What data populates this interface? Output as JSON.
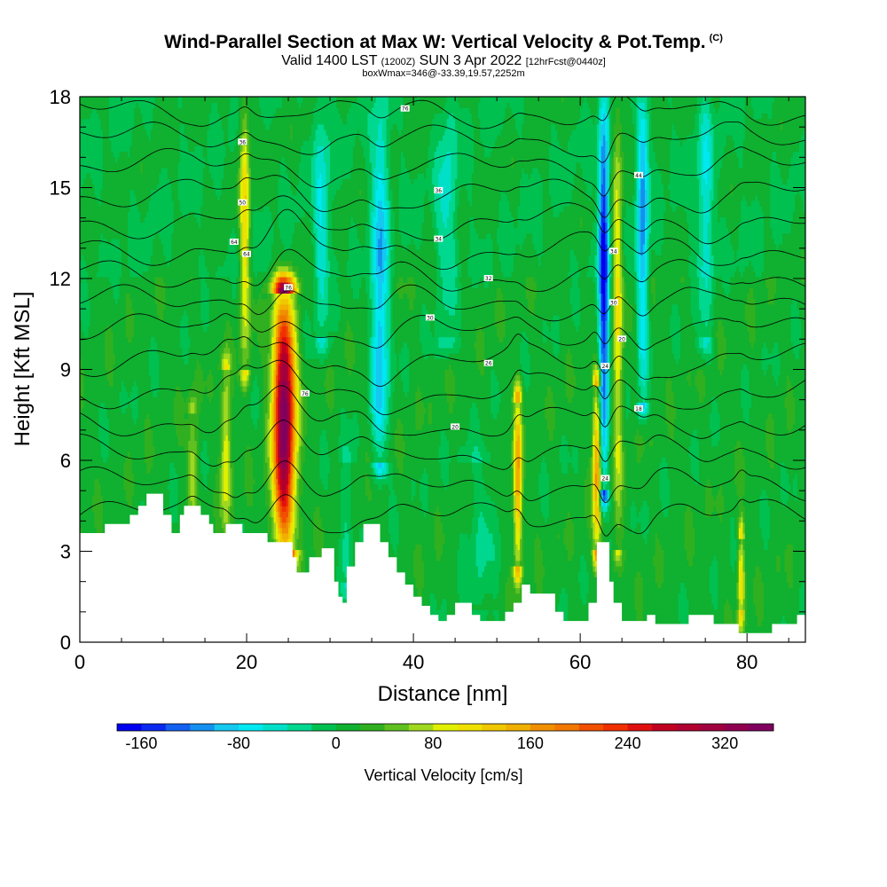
{
  "header": {
    "title": "Wind-Parallel Section at Max W: Vertical Velocity & Pot.Temp.",
    "title_mark": "(C)",
    "valid_prefix": "Valid 1400 LST",
    "valid_utc": "(1200Z)",
    "valid_date": "SUN 3 Apr 2022",
    "forecast": "[12hrFcst@0440z]",
    "box_info": "boxWmax=346@-33.39,19.57,2252m"
  },
  "colorbar": {
    "title": "Vertical Velocity [cm/s]",
    "tick_labels": [
      "-160",
      "-80",
      "0",
      "80",
      "160",
      "240",
      "320"
    ],
    "tick_values": [
      -160,
      -80,
      0,
      80,
      160,
      240,
      320
    ],
    "min": -180,
    "max": 360,
    "step": 20,
    "colors": [
      "#0000f0",
      "#0a2af0",
      "#1460f0",
      "#1490f0",
      "#14c8f0",
      "#00e8f0",
      "#00e0c8",
      "#00d890",
      "#00c050",
      "#10b030",
      "#30b020",
      "#60c020",
      "#a0d820",
      "#e0f000",
      "#f0e000",
      "#f0c800",
      "#f0b000",
      "#f09000",
      "#f07800",
      "#f05000",
      "#f03000",
      "#e01010",
      "#c00020",
      "#b00030",
      "#a00040",
      "#900050",
      "#800060"
    ]
  },
  "chart_data": {
    "type": "heatmap",
    "title": "Wind-Parallel Section at Max W: Vertical Velocity & Pot.Temp.",
    "xlabel": "Distance [nm]",
    "ylabel": "Height [Kft MSL]",
    "xlim": [
      0,
      87
    ],
    "ylim": [
      0,
      18
    ],
    "x_ticks": [
      0,
      20,
      40,
      60,
      80
    ],
    "x_tick_labels": [
      "0",
      "20",
      "40",
      "60",
      "80"
    ],
    "y_ticks": [
      0,
      3,
      6,
      9,
      12,
      15,
      18
    ],
    "y_tick_labels": [
      "0",
      "3",
      "6",
      "9",
      "12",
      "15",
      "18"
    ],
    "background_value": 10,
    "updrafts": [
      {
        "x": 24.5,
        "width": 1.3,
        "zmin": 3.0,
        "zmax": 11.5,
        "zpeak": 7.5,
        "peak": 346
      },
      {
        "x": 17.5,
        "width": 0.6,
        "zmin": 3.5,
        "zmax": 9.0,
        "zpeak": 6.5,
        "peak": 90
      },
      {
        "x": 13.5,
        "width": 0.6,
        "zmin": 4.0,
        "zmax": 7.5,
        "zpeak": 5.5,
        "peak": 70
      },
      {
        "x": 19.8,
        "width": 0.6,
        "zmin": 9.0,
        "zmax": 18.0,
        "zpeak": 14.5,
        "peak": 110
      },
      {
        "x": 52.5,
        "width": 0.5,
        "zmin": 2.5,
        "zmax": 8.0,
        "zpeak": 5.5,
        "peak": 150
      },
      {
        "x": 62.0,
        "width": 0.5,
        "zmin": 3.0,
        "zmax": 8.5,
        "zpeak": 6.0,
        "peak": 170
      },
      {
        "x": 64.5,
        "width": 0.6,
        "zmin": 3.0,
        "zmax": 18.0,
        "zpeak": 12.0,
        "peak": 90
      },
      {
        "x": 79.3,
        "width": 0.4,
        "zmin": 1.0,
        "zmax": 3.5,
        "zpeak": 2.0,
        "peak": 110
      }
    ],
    "downdrafts": [
      {
        "x": 36.0,
        "width": 1.0,
        "zmin": 6.0,
        "zmax": 18.0,
        "zpeak": 10.0,
        "peak": -110
      },
      {
        "x": 62.8,
        "width": 0.6,
        "zmin": 5.0,
        "zmax": 18.0,
        "zpeak": 12.0,
        "peak": -180
      },
      {
        "x": 67.5,
        "width": 0.7,
        "zmin": 8.0,
        "zmax": 18.0,
        "zpeak": 15.0,
        "peak": -110
      },
      {
        "x": 29.0,
        "width": 1.0,
        "zmin": 10.0,
        "zmax": 18.0,
        "zpeak": 14.0,
        "peak": -60
      },
      {
        "x": 44.0,
        "width": 1.2,
        "zmin": 10.0,
        "zmax": 18.0,
        "zpeak": 14.5,
        "peak": -50
      },
      {
        "x": 75.0,
        "width": 1.0,
        "zmin": 10.0,
        "zmax": 18.0,
        "zpeak": 15.0,
        "peak": -60
      },
      {
        "x": 32.0,
        "width": 0.8,
        "zmin": 2.0,
        "zmax": 6.0,
        "zpeak": 4.0,
        "peak": -40
      },
      {
        "x": 48.0,
        "width": 2.0,
        "zmin": 1.0,
        "zmax": 6.0,
        "zpeak": 3.5,
        "peak": -30
      }
    ],
    "terrain": [
      [
        0,
        3.6
      ],
      [
        2,
        3.6
      ],
      [
        3,
        3.9
      ],
      [
        5,
        3.9
      ],
      [
        6,
        4.2
      ],
      [
        7,
        4.5
      ],
      [
        8,
        4.9
      ],
      [
        9,
        4.9
      ],
      [
        10,
        4.2
      ],
      [
        10.5,
        4.2
      ],
      [
        11,
        3.6
      ],
      [
        11.5,
        3.6
      ],
      [
        12,
        4.2
      ],
      [
        12.5,
        4.5
      ],
      [
        14,
        4.5
      ],
      [
        14.5,
        4.2
      ],
      [
        15.5,
        3.9
      ],
      [
        16,
        3.6
      ],
      [
        17,
        3.6
      ],
      [
        17.5,
        3.9
      ],
      [
        19,
        3.9
      ],
      [
        19.5,
        3.6
      ],
      [
        22,
        3.6
      ],
      [
        22.5,
        3.3
      ],
      [
        25,
        3.3
      ],
      [
        25.5,
        2.8
      ],
      [
        26,
        2.3
      ],
      [
        27,
        2.3
      ],
      [
        27.5,
        2.8
      ],
      [
        28.5,
        2.8
      ],
      [
        29,
        3.1
      ],
      [
        30,
        3.1
      ],
      [
        30.5,
        2.0
      ],
      [
        31,
        1.5
      ],
      [
        31.5,
        1.3
      ],
      [
        32,
        2.5
      ],
      [
        33,
        3.3
      ],
      [
        34,
        3.9
      ],
      [
        35,
        3.9
      ],
      [
        36,
        3.3
      ],
      [
        37,
        2.8
      ],
      [
        38,
        2.3
      ],
      [
        39,
        1.9
      ],
      [
        40,
        1.5
      ],
      [
        41,
        1.2
      ],
      [
        42,
        0.9
      ],
      [
        43,
        0.7
      ],
      [
        44,
        0.9
      ],
      [
        45,
        1.3
      ],
      [
        46,
        1.3
      ],
      [
        47,
        0.9
      ],
      [
        48,
        0.7
      ],
      [
        50,
        0.7
      ],
      [
        51,
        1.0
      ],
      [
        52,
        1.3
      ],
      [
        53,
        1.9
      ],
      [
        54,
        1.6
      ],
      [
        56,
        1.6
      ],
      [
        57,
        1.0
      ],
      [
        58,
        0.7
      ],
      [
        60,
        0.7
      ],
      [
        61,
        1.3
      ],
      [
        62,
        3.3
      ],
      [
        63,
        3.3
      ],
      [
        63.5,
        2.0
      ],
      [
        64,
        1.3
      ],
      [
        65,
        0.7
      ],
      [
        67,
        0.7
      ],
      [
        68,
        0.9
      ],
      [
        69,
        0.6
      ],
      [
        73,
        0.9
      ],
      [
        75,
        0.9
      ],
      [
        76,
        0.6
      ],
      [
        78,
        0.6
      ],
      [
        79,
        0.3
      ],
      [
        82,
        0.3
      ],
      [
        83,
        0.6
      ],
      [
        86,
        0.9
      ],
      [
        87,
        0.9
      ]
    ],
    "theta_contours": {
      "interval_C": 2,
      "base_heights": [
        4.2,
        5.2,
        6.3,
        7.3,
        8.3,
        9.3,
        10.3,
        11.2,
        12.1,
        13.0,
        13.9,
        14.8,
        15.7,
        16.6,
        17.5
      ],
      "labels": [
        {
          "text": "36",
          "x": 19.5,
          "y": 16.5
        },
        {
          "text": "50",
          "x": 19.5,
          "y": 14.5
        },
        {
          "text": "64",
          "x": 18.5,
          "y": 13.2
        },
        {
          "text": "64",
          "x": 20.0,
          "y": 12.8
        },
        {
          "text": "76",
          "x": 25.0,
          "y": 11.7
        },
        {
          "text": "76",
          "x": 27.0,
          "y": 8.2
        },
        {
          "text": "76",
          "x": 39.0,
          "y": 17.6
        },
        {
          "text": "36",
          "x": 43.0,
          "y": 14.9
        },
        {
          "text": "34",
          "x": 43.0,
          "y": 13.3
        },
        {
          "text": "32",
          "x": 49.0,
          "y": 12.0
        },
        {
          "text": "30",
          "x": 42.0,
          "y": 10.7
        },
        {
          "text": "26",
          "x": 49.0,
          "y": 9.2
        },
        {
          "text": "20",
          "x": 45.0,
          "y": 7.1
        },
        {
          "text": "44",
          "x": 67.0,
          "y": 15.4
        },
        {
          "text": "34",
          "x": 64.0,
          "y": 12.9
        },
        {
          "text": "30",
          "x": 64.0,
          "y": 11.2
        },
        {
          "text": "20",
          "x": 65.0,
          "y": 10.0
        },
        {
          "text": "24",
          "x": 63.0,
          "y": 9.1
        },
        {
          "text": "18",
          "x": 67.0,
          "y": 7.7
        },
        {
          "text": "24",
          "x": 63.0,
          "y": 5.4
        }
      ]
    }
  }
}
